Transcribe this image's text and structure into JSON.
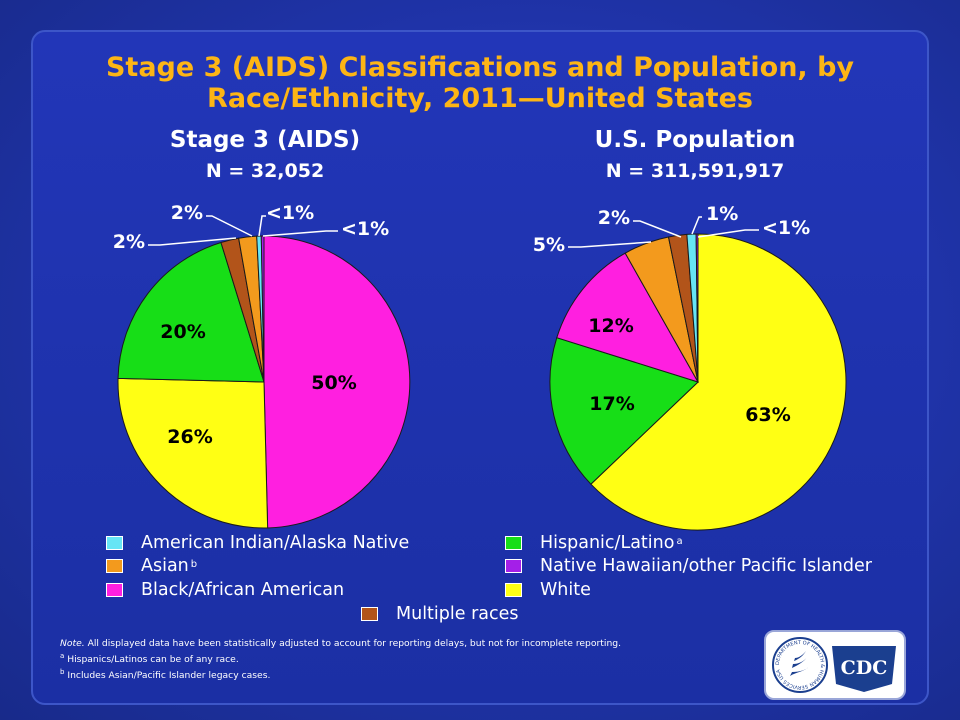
{
  "slide": {
    "title_line1": "Stage 3 (AIDS) Classifications and Population, by",
    "title_line2": "Race/Ethnicity, 2011—United States"
  },
  "colors": {
    "american_indian": "#66e5f5",
    "asian": "#f39a1d",
    "black": "#ff1fe0",
    "hispanic": "#17de17",
    "native_hawaiian": "#a41fe8",
    "white": "#ffff14",
    "multiple": "#b2541a"
  },
  "chart_data": [
    {
      "type": "pie",
      "title": "Stage 3 (AIDS)",
      "subtitle": "N = 32,052",
      "slices": [
        {
          "category": "Black/African American",
          "value": 50,
          "label": "50%",
          "color_key": "black"
        },
        {
          "category": "White",
          "value": 26,
          "label": "26%",
          "color_key": "white"
        },
        {
          "category": "Hispanic/Latino",
          "value": 20,
          "label": "20%",
          "color_key": "hispanic"
        },
        {
          "category": "Multiple races",
          "value": 2,
          "label": "2%",
          "color_key": "multiple"
        },
        {
          "category": "Asian",
          "value": 2,
          "label": "2%",
          "color_key": "asian"
        },
        {
          "category": "American Indian/Alaska Native",
          "value": 0.5,
          "label": "<1%",
          "color_key": "american_indian"
        },
        {
          "category": "Native Hawaiian/other Pacific Islander",
          "value": 0.3,
          "label": "<1%",
          "color_key": "native_hawaiian"
        }
      ]
    },
    {
      "type": "pie",
      "title": "U.S. Population",
      "subtitle": "N = 311,591,917",
      "slices": [
        {
          "category": "White",
          "value": 63,
          "label": "63%",
          "color_key": "white"
        },
        {
          "category": "Hispanic/Latino",
          "value": 17,
          "label": "17%",
          "color_key": "hispanic"
        },
        {
          "category": "Black/African American",
          "value": 12,
          "label": "12%",
          "color_key": "black"
        },
        {
          "category": "Asian",
          "value": 5,
          "label": "5%",
          "color_key": "asian"
        },
        {
          "category": "Multiple races",
          "value": 2,
          "label": "2%",
          "color_key": "multiple"
        },
        {
          "category": "American Indian/Alaska Native",
          "value": 1,
          "label": "1%",
          "color_key": "american_indian"
        },
        {
          "category": "Native Hawaiian/other Pacific Islander",
          "value": 0.2,
          "label": "<1%",
          "color_key": "native_hawaiian"
        }
      ]
    }
  ],
  "legend": [
    {
      "label": "American Indian/Alaska Native",
      "sup": "",
      "color_key": "american_indian"
    },
    {
      "label": "Asian",
      "sup": "b",
      "color_key": "asian"
    },
    {
      "label": "Black/African American",
      "sup": "",
      "color_key": "black"
    },
    {
      "label": "Hispanic/Latino",
      "sup": "a",
      "color_key": "hispanic"
    },
    {
      "label": "Native Hawaiian/other Pacific Islander",
      "sup": "",
      "color_key": "native_hawaiian"
    },
    {
      "label": "White",
      "sup": "",
      "color_key": "white"
    },
    {
      "label": "Multiple races",
      "sup": "",
      "color_key": "multiple"
    }
  ],
  "notes": {
    "note_label": "Note.",
    "note_text": " All displayed data have been statistically adjusted to account for reporting delays, but not for incomplete reporting.",
    "a_mark": "a",
    "a_text": " Hispanics/Latinos can be of any race.",
    "b_mark": "b",
    "b_text": " Includes Asian/Pacific Islander legacy cases."
  },
  "logo": {
    "text": "CDC",
    "seal_text": "DEPARTMENT OF HEALTH & HUMAN SERVICES USA"
  }
}
